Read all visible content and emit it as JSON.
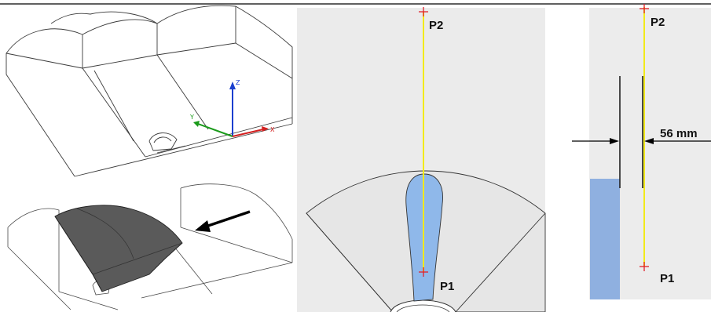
{
  "views": {
    "iso_top": {
      "axes": [
        {
          "label": "Z",
          "color": "#1a3fcf"
        },
        {
          "label": "Y",
          "color": "#1a9a1a"
        },
        {
          "label": "X",
          "color": "#d42020"
        }
      ]
    },
    "section": {
      "points": [
        {
          "label": "P2"
        },
        {
          "label": "P1"
        }
      ],
      "fluid_color": "#8fb8ea",
      "line_color": "#f2ea1a",
      "marker_color": "#e0202a",
      "background_color": "#ebebeb"
    },
    "side": {
      "points": [
        {
          "label": "P2"
        },
        {
          "label": "P1"
        }
      ],
      "dimension_label": "56 mm",
      "fluid_color": "#8fb0e0"
    }
  }
}
